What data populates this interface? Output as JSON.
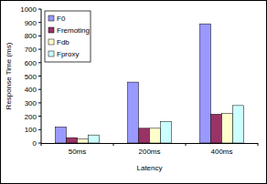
{
  "chart_data": {
    "type": "bar",
    "x_label": "Latency",
    "y_label": "Response Time (ms)",
    "categories": [
      "50ms",
      "200ms",
      "400ms"
    ],
    "series": [
      {
        "name": "F0",
        "color": "#9999ff",
        "values": [
          120,
          455,
          890
        ]
      },
      {
        "name": "Fremoting",
        "color": "#993366",
        "values": [
          40,
          110,
          215
        ]
      },
      {
        "name": "Fdb",
        "color": "#ffffcc",
        "values": [
          30,
          110,
          220
        ]
      },
      {
        "name": "Fproxy",
        "color": "#ccffff",
        "values": [
          60,
          160,
          280
        ]
      }
    ],
    "ylim": [
      0,
      1000
    ],
    "yticks": [
      0,
      100,
      200,
      300,
      400,
      500,
      600,
      700,
      800,
      900,
      1000
    ],
    "grid": false,
    "legend": "upper left"
  }
}
